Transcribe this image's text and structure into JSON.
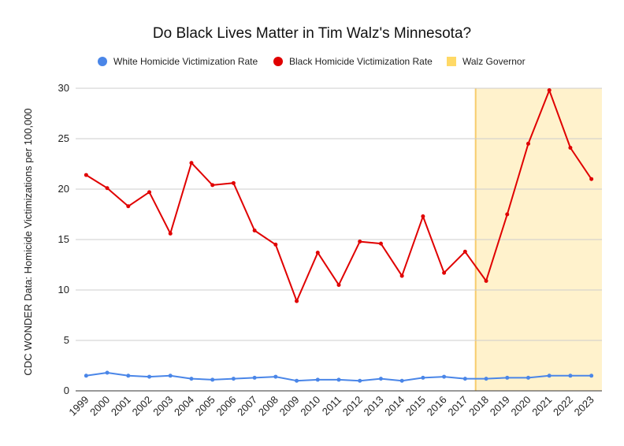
{
  "chart_data": {
    "type": "line",
    "title": "Do Black Lives Matter in Tim Walz's Minnesota?",
    "xlabel": "",
    "ylabel": "CDC WONDER Data: Homicide Victimizations per 100,000",
    "ylim": [
      0,
      30
    ],
    "yticks": [
      0,
      5,
      10,
      15,
      20,
      25,
      30
    ],
    "grid": true,
    "legend_position": "top",
    "categories": [
      "1999",
      "2000",
      "2001",
      "2002",
      "2003",
      "2004",
      "2005",
      "2006",
      "2007",
      "2008",
      "2009",
      "2010",
      "2011",
      "2012",
      "2013",
      "2014",
      "2015",
      "2016",
      "2017",
      "2018",
      "2019",
      "2020",
      "2021",
      "2022",
      "2023"
    ],
    "series": [
      {
        "name": "White Homicide Victimization Rate",
        "color": "#4a86e8",
        "values": [
          1.5,
          1.8,
          1.5,
          1.4,
          1.5,
          1.2,
          1.1,
          1.2,
          1.3,
          1.4,
          1.0,
          1.1,
          1.1,
          1.0,
          1.2,
          1.0,
          1.3,
          1.4,
          1.2,
          1.2,
          1.3,
          1.3,
          1.5,
          1.5,
          1.5
        ]
      },
      {
        "name": "Black Homicide Victimization Rate",
        "color": "#e00000",
        "values": [
          21.4,
          20.1,
          18.3,
          19.7,
          15.6,
          22.6,
          20.4,
          20.6,
          15.9,
          14.5,
          8.9,
          13.7,
          10.5,
          14.8,
          14.6,
          11.4,
          17.3,
          11.7,
          13.8,
          10.9,
          17.5,
          24.5,
          29.8,
          24.1,
          21.0
        ]
      }
    ],
    "shaded_region": {
      "name": "Walz Governor",
      "color": "#fff2cc",
      "border_color": "#f6cc6c",
      "legend_color": "#ffd966",
      "start_index": 18.5,
      "end_index": 24.5
    }
  }
}
